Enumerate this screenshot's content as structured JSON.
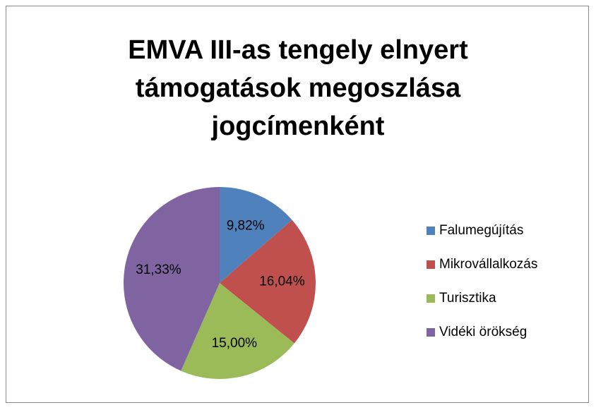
{
  "chart_data": {
    "type": "pie",
    "title": "EMVA III-as tengely elnyert támogatások megoszlása jogcímenként",
    "categories": [
      "Falumegújítás",
      "Mikrovállalkozás",
      "Turisztika",
      "Vidéki örökség"
    ],
    "values": [
      9.82,
      16.04,
      15.0,
      31.33
    ],
    "value_labels": [
      "9,82%",
      "16,04%",
      "15,00%",
      "31,33%"
    ],
    "colors": [
      "#4f81bd",
      "#c0504d",
      "#9bbb59",
      "#8064a2"
    ],
    "legend": "right"
  }
}
